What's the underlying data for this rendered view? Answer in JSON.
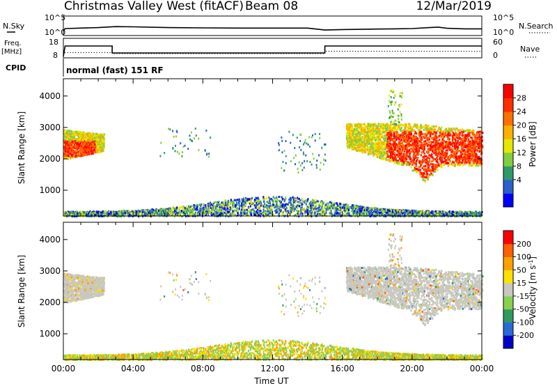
{
  "header": {
    "title": "Christmas Valley West (fitACF)",
    "beam": "Beam 08",
    "date": "12/Mar/2019"
  },
  "panels": {
    "nsky": {
      "left_label": "N.Sky",
      "right_label": "N.Search",
      "left_ticks": [
        "10^5",
        "10^0"
      ],
      "right_ticks": [
        "10^5",
        "10^0"
      ]
    },
    "freq": {
      "left_label_1": "Freq.",
      "left_label_2": "[MHz]",
      "right_label": "Nave",
      "left_ticks": [
        "18",
        "8"
      ],
      "right_ticks": [
        "60",
        "0"
      ]
    },
    "cpid": {
      "label": "CPID",
      "text": "normal (fast) 151 RF"
    }
  },
  "colorbars": {
    "power": {
      "label": "Power [dB]",
      "ticks": [
        "28",
        "24",
        "20",
        "16",
        "12",
        "8",
        "4"
      ],
      "colors": [
        "#0000ff",
        "#2a5fd0",
        "#2e9a6a",
        "#7fcf3e",
        "#e6e600",
        "#ffb000",
        "#ff7000",
        "#ff3000",
        "#ff0000"
      ]
    },
    "velocity": {
      "label": "Velocity [m s",
      "label_sup": "-1",
      "label_end": "]",
      "ticks": [
        "200",
        "100",
        "50",
        "15",
        "-15",
        "-50",
        "-100",
        "-200"
      ],
      "colors": [
        "#0000c8",
        "#2a6ad8",
        "#2e9a60",
        "#8ad050",
        "#c8c8c0",
        "#ffe000",
        "#ffa000",
        "#ff6000",
        "#ff0000"
      ]
    }
  },
  "chart_data": [
    {
      "type": "line",
      "name": "N.Sky / N.Search",
      "x_unit": "hour UT",
      "series": [
        {
          "name": "N.Sky",
          "x": [
            0,
            0.1,
            1,
            2,
            3,
            4,
            6,
            8,
            10,
            12,
            14,
            15,
            16,
            18,
            19,
            20,
            21,
            21.5,
            22,
            23,
            24
          ],
          "y": [
            1.0,
            2.0,
            2.2,
            2.4,
            2.8,
            2.7,
            2.4,
            2.3,
            2.2,
            2.2,
            2.2,
            1.4,
            1.6,
            1.8,
            1.9,
            2.0,
            2.4,
            2.6,
            2.1,
            1.9,
            1.9
          ]
        }
      ]
    },
    {
      "type": "line",
      "name": "Frequency / Nave",
      "x_unit": "hour UT",
      "series": [
        {
          "name": "Freq. [MHz]",
          "x": [
            0,
            0.1,
            2.8,
            2.8,
            15,
            15,
            24
          ],
          "y": [
            8,
            15.5,
            15.5,
            10.5,
            10.5,
            15.5,
            15.5
          ]
        },
        {
          "name": "Nave",
          "x": [
            0,
            0.1,
            2.8,
            2.8,
            15,
            15,
            24
          ],
          "y": [
            0,
            12,
            12,
            7,
            7,
            18,
            18
          ]
        }
      ]
    },
    {
      "type": "heatmap",
      "name": "Power",
      "xlabel": "",
      "ylabel": "Slant Range [km]",
      "xlim": [
        0,
        24
      ],
      "ylim": [
        180,
        4550
      ],
      "yticks": [
        1000,
        2000,
        3000,
        4000
      ],
      "regions": [
        {
          "x": [
            0,
            2.3
          ],
          "y": [
            1900,
            3000
          ],
          "level": "high"
        },
        {
          "x": [
            5.5,
            8.5
          ],
          "y": [
            2000,
            3000
          ],
          "level": "sparse"
        },
        {
          "x": [
            12.3,
            15
          ],
          "y": [
            1500,
            2900
          ],
          "level": "sparse"
        },
        {
          "x": [
            16.2,
            24
          ],
          "y": [
            1300,
            3200
          ],
          "level": "high"
        },
        {
          "x": [
            0,
            24
          ],
          "y": [
            180,
            700
          ],
          "level": "near-range mixed"
        }
      ]
    },
    {
      "type": "heatmap",
      "name": "Velocity",
      "xlabel": "Time UT",
      "ylabel": "Slant Range [km]",
      "xlim": [
        0,
        24
      ],
      "ylim": [
        180,
        4550
      ],
      "yticks": [
        1000,
        2000,
        3000,
        4000
      ],
      "xtick_labels": [
        "00:00",
        "04:00",
        "08:00",
        "12:00",
        "16:00",
        "20:00",
        "00:00"
      ],
      "regions": [
        {
          "x": [
            0,
            2.3
          ],
          "y": [
            1900,
            3000
          ],
          "level": "ground scatter"
        },
        {
          "x": [
            5.5,
            8.5
          ],
          "y": [
            2000,
            3000
          ],
          "level": "sparse"
        },
        {
          "x": [
            12.3,
            15
          ],
          "y": [
            1500,
            2900
          ],
          "level": "sparse"
        },
        {
          "x": [
            16.2,
            24
          ],
          "y": [
            1300,
            3200
          ],
          "level": "ground scatter"
        },
        {
          "x": [
            0,
            24
          ],
          "y": [
            180,
            700
          ],
          "level": "near-range low velocity"
        }
      ]
    }
  ]
}
